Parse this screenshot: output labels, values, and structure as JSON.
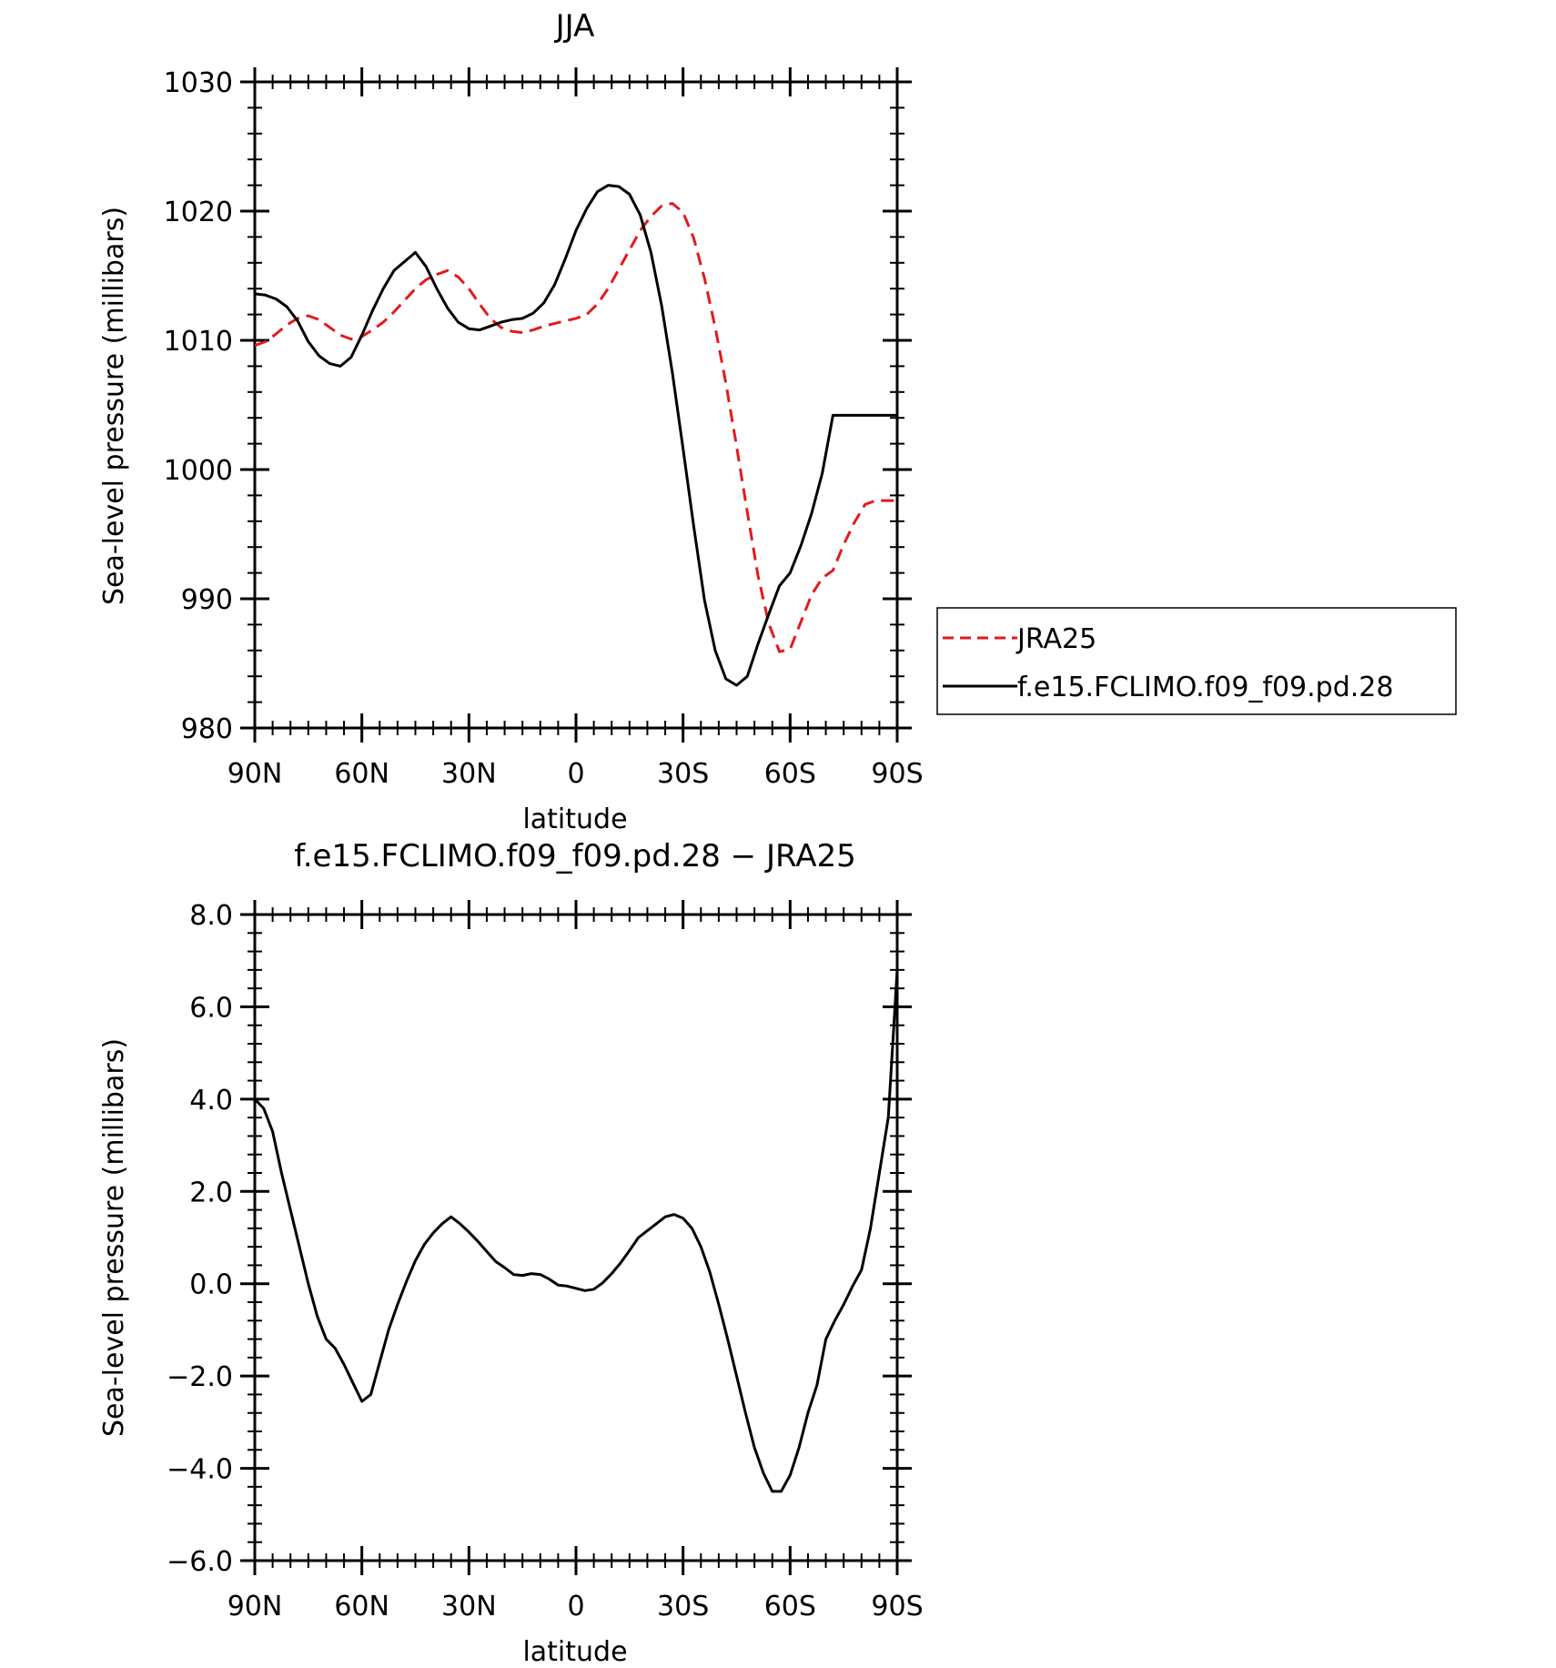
{
  "chart_data": [
    {
      "type": "line",
      "title": "JJA",
      "xlabel": "latitude",
      "ylabel": "Sea-level pressure (millibars)",
      "xticks": [
        {
          "value": -90,
          "label": "90N"
        },
        {
          "value": -60,
          "label": "60N"
        },
        {
          "value": -30,
          "label": "30N"
        },
        {
          "value": 0,
          "label": "0"
        },
        {
          "value": 30,
          "label": "30S"
        },
        {
          "value": 60,
          "label": "60S"
        },
        {
          "value": 90,
          "label": "90S"
        }
      ],
      "xlim": [
        -90,
        90
      ],
      "ylim": [
        980,
        1030
      ],
      "yticks": [
        {
          "value": 980,
          "label": "980"
        },
        {
          "value": 990,
          "label": "990"
        },
        {
          "value": 1000,
          "label": "1000"
        },
        {
          "value": 1010,
          "label": "1010"
        },
        {
          "value": 1020,
          "label": "1020"
        },
        {
          "value": 1030,
          "label": "1030"
        }
      ],
      "grid": false,
      "legend": {
        "placement": "right"
      },
      "series": [
        {
          "name": "JRA25",
          "color": "#e31a1c",
          "dashed": true,
          "x": [
            -90,
            -87,
            -84,
            -81,
            -78,
            -75,
            -72,
            -69,
            -66,
            -63,
            -60,
            -57,
            -54,
            -51,
            -48,
            -45,
            -42,
            -39,
            -36,
            -33,
            -30,
            -27,
            -24,
            -21,
            -18,
            -15,
            -12,
            -9,
            -6,
            -3,
            0,
            3,
            6,
            9,
            12,
            15,
            18,
            21,
            24,
            27,
            30,
            33,
            36,
            39,
            42,
            45,
            48,
            51,
            54,
            57,
            60,
            63,
            66,
            69,
            72,
            75,
            78,
            81,
            84,
            87,
            90
          ],
          "y": [
            1009.6,
            1009.9,
            1010.5,
            1011.2,
            1011.7,
            1011.9,
            1011.6,
            1011.0,
            1010.4,
            1010.1,
            1010.3,
            1010.8,
            1011.4,
            1012.2,
            1013.1,
            1014.0,
            1014.7,
            1015.1,
            1015.4,
            1014.9,
            1014.0,
            1012.8,
            1011.7,
            1011.0,
            1010.7,
            1010.6,
            1010.8,
            1011.1,
            1011.3,
            1011.5,
            1011.7,
            1012.0,
            1012.8,
            1014.0,
            1015.5,
            1017.0,
            1018.5,
            1019.6,
            1020.4,
            1020.6,
            1019.9,
            1017.9,
            1014.8,
            1011.0,
            1006.7,
            1001.8,
            996.7,
            991.8,
            988.1,
            985.9,
            986.1,
            988.2,
            990.3,
            991.6,
            992.2,
            994.2,
            995.9,
            997.3,
            997.6,
            997.6,
            997.6
          ]
        },
        {
          "name": "f.e15.FCLIMO.f09_f09.pd.28",
          "color": "#000000",
          "dashed": false,
          "x": [
            -90,
            -87,
            -84,
            -81,
            -78,
            -75,
            -72,
            -69,
            -66,
            -63,
            -60,
            -57,
            -54,
            -51,
            -48,
            -45,
            -42,
            -39,
            -36,
            -33,
            -30,
            -27,
            -24,
            -21,
            -18,
            -15,
            -12,
            -9,
            -6,
            -3,
            0,
            3,
            6,
            9,
            12,
            15,
            18,
            21,
            24,
            27,
            30,
            33,
            36,
            39,
            42,
            45,
            48,
            51,
            54,
            57,
            60,
            63,
            66,
            69,
            72,
            75,
            78,
            81,
            84,
            87,
            90
          ],
          "y": [
            1013.6,
            1013.5,
            1013.2,
            1012.6,
            1011.5,
            1009.9,
            1008.8,
            1008.2,
            1008.0,
            1008.7,
            1010.4,
            1012.3,
            1014.0,
            1015.4,
            1016.1,
            1016.8,
            1015.7,
            1014.0,
            1012.5,
            1011.4,
            1010.9,
            1010.8,
            1011.1,
            1011.4,
            1011.6,
            1011.7,
            1012.1,
            1012.9,
            1014.3,
            1016.3,
            1018.5,
            1020.2,
            1021.5,
            1022.0,
            1021.9,
            1021.3,
            1019.7,
            1016.8,
            1012.7,
            1007.5,
            1001.6,
            995.6,
            989.9,
            986.0,
            983.8,
            983.3,
            984.0,
            986.5,
            988.8,
            991.0,
            992.0,
            994.1,
            996.6,
            999.7,
            1004.2,
            1004.2,
            1004.2,
            1004.2,
            1004.2,
            1004.2,
            1004.2
          ]
        }
      ]
    },
    {
      "type": "line",
      "title": "f.e15.FCLIMO.f09_f09.pd.28 − JRA25",
      "xlabel": "latitude",
      "ylabel": "Sea-level pressure (millibars)",
      "xticks": [
        {
          "value": -90,
          "label": "90N"
        },
        {
          "value": -60,
          "label": "60N"
        },
        {
          "value": -30,
          "label": "30N"
        },
        {
          "value": 0,
          "label": "0"
        },
        {
          "value": 30,
          "label": "30S"
        },
        {
          "value": 60,
          "label": "60S"
        },
        {
          "value": 90,
          "label": "90S"
        }
      ],
      "xlim": [
        -90,
        90
      ],
      "ylim": [
        -6,
        8
      ],
      "yticks": [
        {
          "value": -6,
          "label": "−6.0"
        },
        {
          "value": -4,
          "label": "−4.0"
        },
        {
          "value": -2,
          "label": "−2.0"
        },
        {
          "value": 0,
          "label": "0.0"
        },
        {
          "value": 2,
          "label": "2.0"
        },
        {
          "value": 4,
          "label": "4.0"
        },
        {
          "value": 6,
          "label": "6.0"
        },
        {
          "value": 8,
          "label": "8.0"
        }
      ],
      "grid": false,
      "series": [
        {
          "color": "#000000",
          "dashed": false,
          "x": [
            -90,
            -87.5,
            -85,
            -82.5,
            -80,
            -77.5,
            -75,
            -72.5,
            -70,
            -67.5,
            -65,
            -62.5,
            -60,
            -57.5,
            -55,
            -52.5,
            -50,
            -47.5,
            -45,
            -42.5,
            -40,
            -37.5,
            -35,
            -32.5,
            -30,
            -27.5,
            -25,
            -22.5,
            -20,
            -17.5,
            -15,
            -12.5,
            -10,
            -7.5,
            -5,
            -2.5,
            0,
            2.5,
            5,
            7.5,
            10,
            12.5,
            15,
            17.5,
            20,
            22.5,
            25,
            27.5,
            30,
            32.5,
            35,
            37.5,
            40,
            42.5,
            45,
            47.5,
            50,
            52.5,
            55,
            57.5,
            60,
            62.5,
            65,
            67.5,
            70,
            72.5,
            75,
            77.5,
            80,
            82.5,
            85,
            87.5,
            90
          ],
          "y": [
            4.0,
            3.8,
            3.3,
            2.4,
            1.6,
            0.8,
            0.0,
            -0.7,
            -1.2,
            -1.4,
            -1.75,
            -2.15,
            -2.55,
            -2.4,
            -1.7,
            -1.0,
            -0.45,
            0.05,
            0.5,
            0.85,
            1.1,
            1.3,
            1.45,
            1.3,
            1.12,
            0.92,
            0.7,
            0.48,
            0.35,
            0.2,
            0.18,
            0.22,
            0.2,
            0.1,
            -0.03,
            -0.05,
            -0.1,
            -0.15,
            -0.12,
            0.02,
            0.22,
            0.45,
            0.72,
            1.0,
            1.15,
            1.3,
            1.45,
            1.5,
            1.42,
            1.2,
            0.8,
            0.25,
            -0.45,
            -1.2,
            -2.0,
            -2.8,
            -3.55,
            -4.1,
            -4.5,
            -4.5,
            -4.15,
            -3.55,
            -2.8,
            -2.2,
            -1.2,
            -0.8,
            -0.45,
            -0.05,
            0.3,
            1.2,
            2.4,
            3.6,
            6.8
          ]
        }
      ]
    }
  ]
}
